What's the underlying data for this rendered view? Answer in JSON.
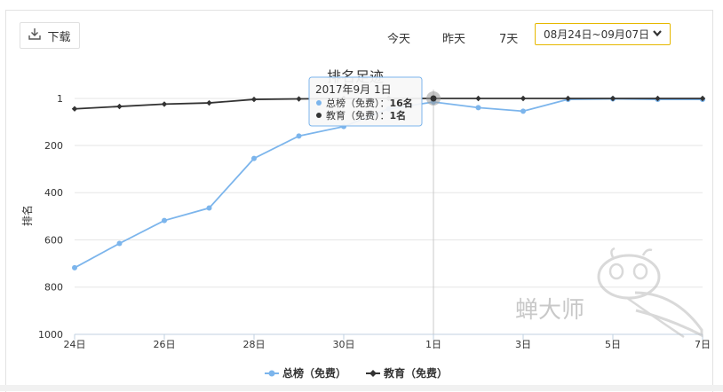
{
  "toolbar": {
    "download_label": "下载",
    "range_today": "今天",
    "range_yesterday": "昨天",
    "range_7days": "7天",
    "date_range": "08月24日~09月07日"
  },
  "chart_data": {
    "type": "line",
    "title": "排名足迹",
    "ylabel": "排名",
    "y_reversed": true,
    "ylim": [
      1,
      1000
    ],
    "yticks": [
      "1",
      "200",
      "400",
      "600",
      "800",
      "1000"
    ],
    "x": [
      "24日",
      "25日",
      "26日",
      "27日",
      "28日",
      "29日",
      "30日",
      "31日",
      "1日",
      "2日",
      "3日",
      "4日",
      "5日",
      "6日",
      "7日"
    ],
    "xticks": [
      "24日",
      "26日",
      "28日",
      "30日",
      "1日",
      "3日",
      "5日",
      "7日"
    ],
    "series": [
      {
        "name": "总榜（免费）",
        "color": "#7cb5ec",
        "values": [
          718,
          615,
          518,
          465,
          255,
          160,
          120,
          45,
          16,
          40,
          55,
          5,
          3,
          5,
          5
        ]
      },
      {
        "name": "教育（免费）",
        "color": "#333333",
        "values": [
          45,
          35,
          25,
          20,
          5,
          3,
          1,
          1,
          1,
          1,
          1,
          1,
          1,
          1,
          1
        ]
      }
    ],
    "grid": true,
    "legend": "bottom-center",
    "tooltip": {
      "date": "2017年9月 1日",
      "line1_name": "总榜（免费）：",
      "line1_value": "16名",
      "line2_name": "教育（免费）：",
      "line2_value": "1名"
    }
  },
  "watermark": "蝉大师"
}
